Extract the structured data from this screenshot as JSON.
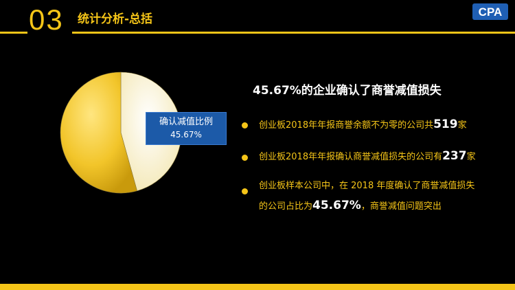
{
  "header": {
    "section_number": "03",
    "title": "统计分析-总括"
  },
  "logo": {
    "text": "CPA"
  },
  "chart_data": {
    "type": "pie",
    "slices": [
      {
        "label": "确认减值比例",
        "value": 45.67,
        "color": "#fbf3d0"
      },
      {
        "label": "",
        "value": 54.33,
        "color": "#f2c52a"
      }
    ],
    "data_label": {
      "name": "确认减值比例",
      "value": "45.67%"
    }
  },
  "headline": "45.67%的企业确认了商誉减值损失",
  "bullets": [
    {
      "pre": "创业板2018年年报商誉余额不为零的公司共",
      "num": "519",
      "post": "家"
    },
    {
      "pre": "创业板2018年年报确认商誉减值损失的公司有",
      "num": "237",
      "post": "家"
    },
    {
      "line1": "创业板样本公司中，在 2018 年度确认了商誉减值损失",
      "pre": "的公司占比为",
      "num": "45.67%",
      "post": "，商誉减值问题突出"
    }
  ],
  "colors": {
    "accent": "#f5c518",
    "label_box": "#1c5aa8",
    "background": "#000000"
  }
}
